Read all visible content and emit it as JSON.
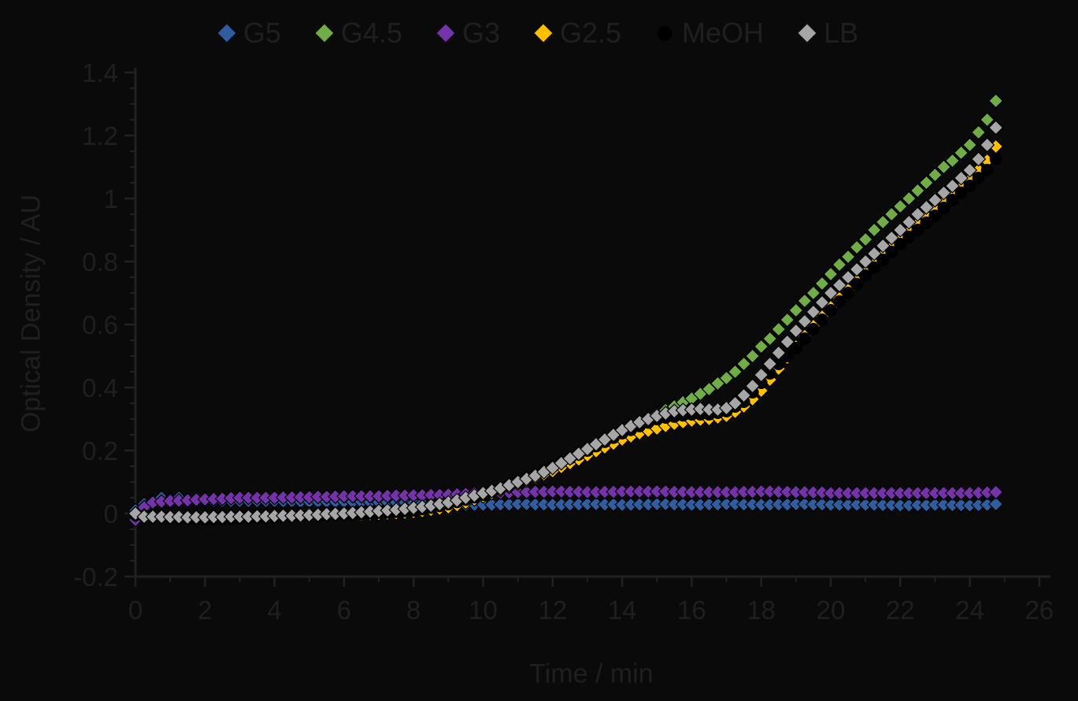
{
  "chart_data": {
    "type": "scatter",
    "title": "",
    "xlabel": "Time / min",
    "ylabel": "Optical Density / AU",
    "xlim": [
      0,
      26
    ],
    "ylim": [
      -0.2,
      1.4
    ],
    "grid": "off",
    "legend_position": "top-center",
    "colors": {
      "background": "#0a0a0a",
      "text": "#1f1f1f",
      "axis": "#212121",
      "marker_outline": "#000000"
    },
    "x_ticks": [
      {
        "v": 0,
        "label": "0"
      },
      {
        "v": 2,
        "label": "2"
      },
      {
        "v": 4,
        "label": "4"
      },
      {
        "v": 6,
        "label": "6"
      },
      {
        "v": 8,
        "label": "8"
      },
      {
        "v": 10,
        "label": "10"
      },
      {
        "v": 12,
        "label": "12"
      },
      {
        "v": 14,
        "label": "14"
      },
      {
        "v": 16,
        "label": "16"
      },
      {
        "v": 18,
        "label": "18"
      },
      {
        "v": 20,
        "label": "20"
      },
      {
        "v": 22,
        "label": "22"
      },
      {
        "v": 24,
        "label": "24"
      },
      {
        "v": 26,
        "label": "26"
      }
    ],
    "x_minor_tick_step": 1,
    "y_ticks": [
      {
        "v": -0.2,
        "label": "-0.2"
      },
      {
        "v": 0,
        "label": "0"
      },
      {
        "v": 0.2,
        "label": "0.2"
      },
      {
        "v": 0.4,
        "label": "0.4"
      },
      {
        "v": 0.6,
        "label": "0.6"
      },
      {
        "v": 0.8,
        "label": "0.8"
      },
      {
        "v": 1,
        "label": "1"
      },
      {
        "v": 1.2,
        "label": "1.2"
      },
      {
        "v": 1.4,
        "label": "1.4"
      }
    ],
    "y_minor_tick_step": 0.05,
    "time_min": {
      "start": 0,
      "step": 0.25,
      "count": 100
    },
    "series": [
      {
        "name": "G5",
        "color": "#2F5D9E",
        "marker": "diamond",
        "od_values": [
          0.01,
          0.03,
          0.04,
          0.05,
          0.045,
          0.05,
          0.04,
          0.04,
          0.04,
          0.04,
          0.04,
          0.04,
          0.04,
          0.04,
          0.04,
          0.04,
          0.04,
          0.039,
          0.039,
          0.038,
          0.038,
          0.038,
          0.038,
          0.038,
          0.038,
          0.037,
          0.037,
          0.036,
          0.036,
          0.036,
          0.035,
          0.035,
          0.034,
          0.033,
          0.03,
          0.029,
          0.028,
          0.028,
          0.028,
          0.028,
          0.028,
          0.028,
          0.029,
          0.029,
          0.03,
          0.03,
          0.029,
          0.029,
          0.028,
          0.028,
          0.029,
          0.029,
          0.03,
          0.03,
          0.029,
          0.029,
          0.028,
          0.028,
          0.029,
          0.029,
          0.03,
          0.03,
          0.029,
          0.029,
          0.028,
          0.028,
          0.029,
          0.029,
          0.03,
          0.03,
          0.029,
          0.029,
          0.028,
          0.028,
          0.029,
          0.029,
          0.03,
          0.03,
          0.029,
          0.029,
          0.028,
          0.028,
          0.028,
          0.028,
          0.028,
          0.028,
          0.027,
          0.027,
          0.026,
          0.026,
          0.027,
          0.027,
          0.028,
          0.028,
          0.027,
          0.027,
          0.026,
          0.027,
          0.028,
          0.03
        ]
      },
      {
        "name": "G4.5",
        "color": "#70AD47",
        "marker": "diamond",
        "od_values": [
          0.0,
          -0.003,
          -0.005,
          -0.008,
          -0.01,
          -0.01,
          -0.01,
          -0.01,
          -0.01,
          -0.009,
          -0.008,
          -0.007,
          -0.006,
          -0.005,
          -0.004,
          -0.003,
          -0.002,
          -0.002,
          -0.001,
          -0.001,
          0.0,
          0.0,
          0.0,
          0.0,
          0.0,
          0.002,
          0.004,
          0.006,
          0.008,
          0.01,
          0.011,
          0.013,
          0.015,
          0.019,
          0.022,
          0.026,
          0.03,
          0.037,
          0.045,
          0.052,
          0.06,
          0.069,
          0.078,
          0.086,
          0.095,
          0.106,
          0.118,
          0.129,
          0.14,
          0.155,
          0.17,
          0.185,
          0.2,
          0.215,
          0.23,
          0.245,
          0.26,
          0.275,
          0.29,
          0.303,
          0.315,
          0.328,
          0.34,
          0.353,
          0.365,
          0.38,
          0.395,
          0.413,
          0.43,
          0.45,
          0.475,
          0.5,
          0.53,
          0.555,
          0.585,
          0.615,
          0.645,
          0.675,
          0.7,
          0.73,
          0.76,
          0.79,
          0.815,
          0.845,
          0.87,
          0.9,
          0.925,
          0.95,
          0.975,
          1.0,
          1.025,
          1.05,
          1.075,
          1.1,
          1.12,
          1.145,
          1.17,
          1.21,
          1.25,
          1.31
        ]
      },
      {
        "name": "G3",
        "color": "#7533A9",
        "marker": "diamond",
        "od_values": [
          -0.02,
          0.02,
          0.035,
          0.038,
          0.04,
          0.041,
          0.042,
          0.044,
          0.045,
          0.046,
          0.047,
          0.049,
          0.05,
          0.05,
          0.05,
          0.05,
          0.05,
          0.051,
          0.051,
          0.052,
          0.052,
          0.053,
          0.053,
          0.054,
          0.055,
          0.055,
          0.055,
          0.055,
          0.055,
          0.056,
          0.057,
          0.057,
          0.058,
          0.058,
          0.059,
          0.059,
          0.06,
          0.061,
          0.062,
          0.064,
          0.065,
          0.066,
          0.066,
          0.067,
          0.068,
          0.068,
          0.069,
          0.069,
          0.07,
          0.07,
          0.069,
          0.069,
          0.068,
          0.068,
          0.069,
          0.069,
          0.07,
          0.07,
          0.07,
          0.07,
          0.07,
          0.07,
          0.069,
          0.069,
          0.068,
          0.068,
          0.068,
          0.068,
          0.068,
          0.068,
          0.069,
          0.069,
          0.07,
          0.07,
          0.069,
          0.069,
          0.068,
          0.068,
          0.067,
          0.067,
          0.065,
          0.065,
          0.065,
          0.065,
          0.065,
          0.065,
          0.065,
          0.065,
          0.065,
          0.065,
          0.065,
          0.065,
          0.065,
          0.065,
          0.065,
          0.065,
          0.065,
          0.066,
          0.067,
          0.068
        ]
      },
      {
        "name": "G2.5",
        "color": "#FFC000",
        "marker": "diamond",
        "od_values": [
          -0.005,
          -0.006,
          -0.007,
          -0.008,
          -0.009,
          -0.01,
          -0.01,
          -0.01,
          -0.01,
          -0.01,
          -0.009,
          -0.009,
          -0.008,
          -0.008,
          -0.007,
          -0.007,
          -0.006,
          -0.006,
          -0.005,
          -0.005,
          -0.005,
          -0.005,
          -0.005,
          -0.005,
          -0.005,
          -0.004,
          -0.003,
          -0.002,
          -0.001,
          0.0,
          0.001,
          0.003,
          0.005,
          0.008,
          0.012,
          0.016,
          0.02,
          0.027,
          0.035,
          0.045,
          0.055,
          0.065,
          0.075,
          0.085,
          0.095,
          0.105,
          0.115,
          0.125,
          0.135,
          0.148,
          0.16,
          0.172,
          0.185,
          0.198,
          0.21,
          0.222,
          0.235,
          0.245,
          0.255,
          0.263,
          0.27,
          0.278,
          0.285,
          0.29,
          0.295,
          0.298,
          0.3,
          0.305,
          0.31,
          0.323,
          0.34,
          0.363,
          0.39,
          0.425,
          0.46,
          0.495,
          0.53,
          0.563,
          0.595,
          0.625,
          0.655,
          0.683,
          0.71,
          0.738,
          0.765,
          0.793,
          0.82,
          0.845,
          0.87,
          0.895,
          0.92,
          0.943,
          0.965,
          0.988,
          1.01,
          1.035,
          1.06,
          1.09,
          1.12,
          1.165
        ]
      },
      {
        "name": "MeOH",
        "color": "#000000",
        "marker": "circle",
        "od_values": [
          -0.005,
          -0.008,
          -0.01,
          -0.012,
          -0.014,
          -0.015,
          -0.016,
          -0.017,
          -0.018,
          -0.017,
          -0.016,
          -0.016,
          -0.015,
          -0.014,
          -0.013,
          -0.012,
          -0.012,
          -0.011,
          -0.01,
          -0.009,
          -0.008,
          -0.008,
          -0.007,
          -0.006,
          -0.005,
          -0.003,
          -0.001,
          0.001,
          0.003,
          0.004,
          0.006,
          0.008,
          0.01,
          0.014,
          0.019,
          0.024,
          0.03,
          0.037,
          0.044,
          0.052,
          0.06,
          0.07,
          0.08,
          0.09,
          0.1,
          0.112,
          0.125,
          0.137,
          0.15,
          0.163,
          0.175,
          0.188,
          0.2,
          0.214,
          0.228,
          0.241,
          0.255,
          0.266,
          0.278,
          0.289,
          0.3,
          0.305,
          0.308,
          0.312,
          0.315,
          0.315,
          0.315,
          0.32,
          0.325,
          0.34,
          0.355,
          0.385,
          0.415,
          0.445,
          0.475,
          0.5,
          0.525,
          0.555,
          0.585,
          0.615,
          0.645,
          0.673,
          0.7,
          0.728,
          0.755,
          0.78,
          0.805,
          0.83,
          0.855,
          0.878,
          0.9,
          0.923,
          0.945,
          0.97,
          0.995,
          1.018,
          1.04,
          1.065,
          1.09,
          1.125
        ]
      },
      {
        "name": "LB",
        "color": "#A6A6A6",
        "marker": "diamond",
        "od_values": [
          0.0,
          -0.01,
          -0.01,
          -0.01,
          -0.011,
          -0.011,
          -0.012,
          -0.012,
          -0.012,
          -0.011,
          -0.011,
          -0.01,
          -0.01,
          -0.01,
          -0.009,
          -0.009,
          -0.008,
          -0.007,
          -0.007,
          -0.006,
          -0.005,
          -0.004,
          -0.002,
          -0.001,
          0.0,
          0.002,
          0.004,
          0.006,
          0.008,
          0.01,
          0.012,
          0.015,
          0.018,
          0.021,
          0.025,
          0.03,
          0.035,
          0.042,
          0.05,
          0.057,
          0.065,
          0.072,
          0.08,
          0.09,
          0.1,
          0.11,
          0.12,
          0.132,
          0.145,
          0.16,
          0.175,
          0.19,
          0.205,
          0.22,
          0.235,
          0.25,
          0.265,
          0.278,
          0.29,
          0.3,
          0.31,
          0.318,
          0.325,
          0.328,
          0.33,
          0.332,
          0.33,
          0.33,
          0.335,
          0.35,
          0.375,
          0.405,
          0.44,
          0.475,
          0.51,
          0.545,
          0.58,
          0.61,
          0.64,
          0.67,
          0.7,
          0.725,
          0.75,
          0.775,
          0.8,
          0.825,
          0.85,
          0.875,
          0.9,
          0.925,
          0.95,
          0.972,
          0.995,
          1.018,
          1.04,
          1.065,
          1.09,
          1.125,
          1.17,
          1.225
        ]
      }
    ],
    "draw_order": [
      "G5",
      "G4.5",
      "G3",
      "G2.5",
      "MeOH",
      "LB"
    ]
  }
}
